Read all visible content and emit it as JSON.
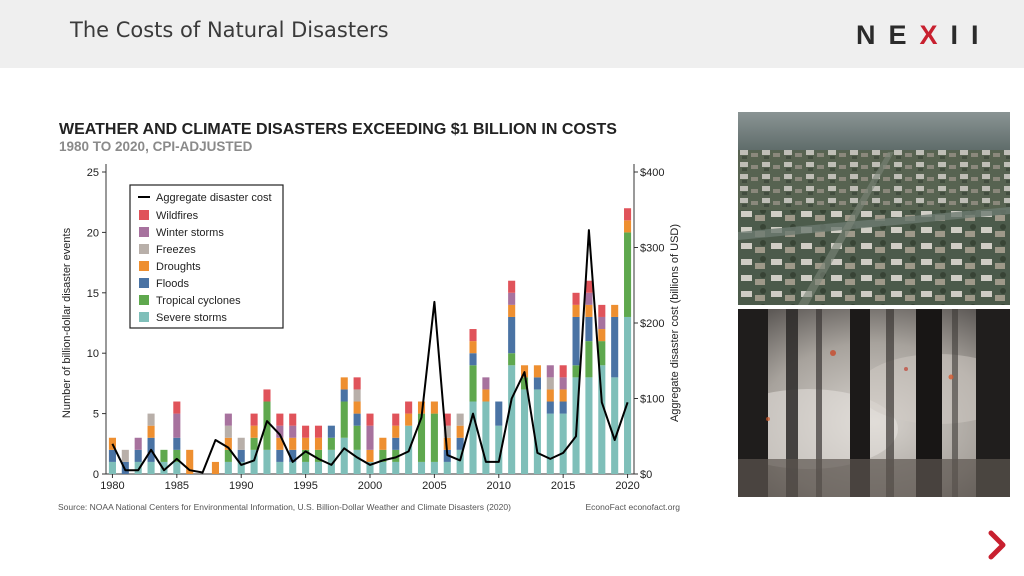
{
  "header": {
    "title": "The Costs of Natural Disasters",
    "logo_pre": "NE",
    "logo_x": "X",
    "logo_post": "II"
  },
  "photos": [
    {
      "icon": "flooded-city-photo"
    },
    {
      "icon": "forest-fire-photo"
    }
  ],
  "navigation": {
    "icon": "chevron-right-icon"
  },
  "chart_data": {
    "type": "bar",
    "title": "WEATHER AND CLIMATE DISASTERS EXCEEDING $1 BILLION IN COSTS",
    "subtitle": "1980 TO 2020, CPI-ADJUSTED",
    "ylabel": "Number of billion-dollar disaster events",
    "y2label": "Aggregate disaster cost (billions of USD)",
    "source": "Source: NOAA National Centers for Environmental Information, U.S. Billion-Dollar Weather and Climate Disasters (2020)",
    "credit": "EconoFact  econofact.org",
    "ylim": [
      0,
      25
    ],
    "y2lim": [
      0,
      400
    ],
    "yticks": [
      "0",
      "5",
      "10",
      "15",
      "20",
      "25"
    ],
    "y2ticks": [
      "$0",
      "$100",
      "$200",
      "$300",
      "$400"
    ],
    "xticks": [
      "1980",
      "1985",
      "1990",
      "1995",
      "2000",
      "2005",
      "2010",
      "2015",
      "2020"
    ],
    "stacked": true,
    "legend_position": "top-left",
    "line_legend": "Aggregate disaster cost",
    "colors": {
      "Severe storms": "#7fbfb9",
      "Tropical cyclones": "#5fa84e",
      "Floods": "#4a73a4",
      "Droughts": "#ee8f30",
      "Freezes": "#b8afa9",
      "Winter storms": "#a7729e",
      "Wildfires": "#e0535a",
      "line": "#000000"
    },
    "categories": [
      "1980",
      "1981",
      "1982",
      "1983",
      "1984",
      "1985",
      "1986",
      "1987",
      "1988",
      "1989",
      "1990",
      "1991",
      "1992",
      "1993",
      "1994",
      "1995",
      "1996",
      "1997",
      "1998",
      "1999",
      "2000",
      "2001",
      "2002",
      "2003",
      "2004",
      "2005",
      "2006",
      "2007",
      "2008",
      "2009",
      "2010",
      "2011",
      "2012",
      "2013",
      "2014",
      "2015",
      "2016",
      "2017",
      "2018",
      "2019",
      "2020"
    ],
    "series": [
      {
        "name": "Severe storms",
        "values": [
          1,
          0,
          1,
          1,
          1,
          1,
          0,
          0,
          0,
          1,
          1,
          2,
          2,
          1,
          1,
          1,
          1,
          2,
          3,
          2,
          1,
          1,
          1,
          4,
          1,
          1,
          1,
          2,
          6,
          6,
          4,
          9,
          7,
          7,
          5,
          5,
          8,
          8,
          9,
          8,
          13
        ]
      },
      {
        "name": "Tropical cyclones",
        "values": [
          0,
          0,
          0,
          0,
          1,
          1,
          0,
          0,
          0,
          1,
          0,
          1,
          4,
          0,
          0,
          1,
          1,
          1,
          3,
          2,
          0,
          1,
          1,
          0,
          4,
          4,
          0,
          0,
          3,
          0,
          0,
          1,
          1,
          0,
          0,
          0,
          1,
          3,
          2,
          0,
          7
        ]
      },
      {
        "name": "Floods",
        "values": [
          1,
          1,
          1,
          2,
          0,
          1,
          0,
          0,
          0,
          0,
          1,
          0,
          0,
          1,
          1,
          0,
          0,
          1,
          1,
          1,
          0,
          0,
          1,
          0,
          0,
          0,
          1,
          1,
          1,
          0,
          2,
          3,
          0,
          1,
          1,
          1,
          4,
          2,
          0,
          5,
          0
        ]
      },
      {
        "name": "Droughts",
        "values": [
          1,
          0,
          0,
          1,
          0,
          0,
          2,
          0,
          1,
          1,
          0,
          1,
          0,
          1,
          1,
          1,
          1,
          0,
          1,
          1,
          1,
          1,
          1,
          1,
          1,
          1,
          1,
          1,
          1,
          1,
          0,
          1,
          1,
          1,
          1,
          1,
          1,
          1,
          1,
          1,
          1
        ]
      },
      {
        "name": "Freezes",
        "values": [
          0,
          1,
          0,
          1,
          0,
          0,
          0,
          0,
          0,
          1,
          1,
          0,
          0,
          0,
          0,
          0,
          0,
          0,
          0,
          1,
          0,
          0,
          0,
          0,
          0,
          0,
          1,
          1,
          0,
          0,
          0,
          0,
          0,
          0,
          1,
          0,
          0,
          0,
          0,
          0,
          0
        ]
      },
      {
        "name": "Winter storms",
        "values": [
          0,
          0,
          1,
          0,
          0,
          2,
          0,
          0,
          0,
          1,
          0,
          0,
          0,
          1,
          1,
          0,
          0,
          0,
          0,
          0,
          2,
          0,
          0,
          0,
          0,
          0,
          0,
          0,
          0,
          1,
          0,
          1,
          0,
          0,
          1,
          1,
          0,
          1,
          1,
          0,
          0
        ]
      },
      {
        "name": "Wildfires",
        "values": [
          0,
          0,
          0,
          0,
          0,
          1,
          0,
          0,
          0,
          0,
          0,
          1,
          1,
          1,
          1,
          1,
          1,
          0,
          0,
          1,
          1,
          0,
          1,
          1,
          0,
          0,
          1,
          0,
          1,
          0,
          0,
          1,
          0,
          0,
          0,
          1,
          1,
          1,
          1,
          0,
          1
        ]
      }
    ],
    "line_series": {
      "name": "Aggregate disaster cost",
      "axis": "right",
      "values": [
        40,
        5,
        5,
        32,
        5,
        20,
        5,
        2,
        45,
        35,
        12,
        18,
        70,
        52,
        16,
        30,
        20,
        12,
        34,
        22,
        12,
        18,
        22,
        30,
        75,
        228,
        25,
        18,
        80,
        16,
        16,
        100,
        135,
        28,
        20,
        28,
        50,
        323,
        95,
        45,
        95
      ]
    }
  }
}
